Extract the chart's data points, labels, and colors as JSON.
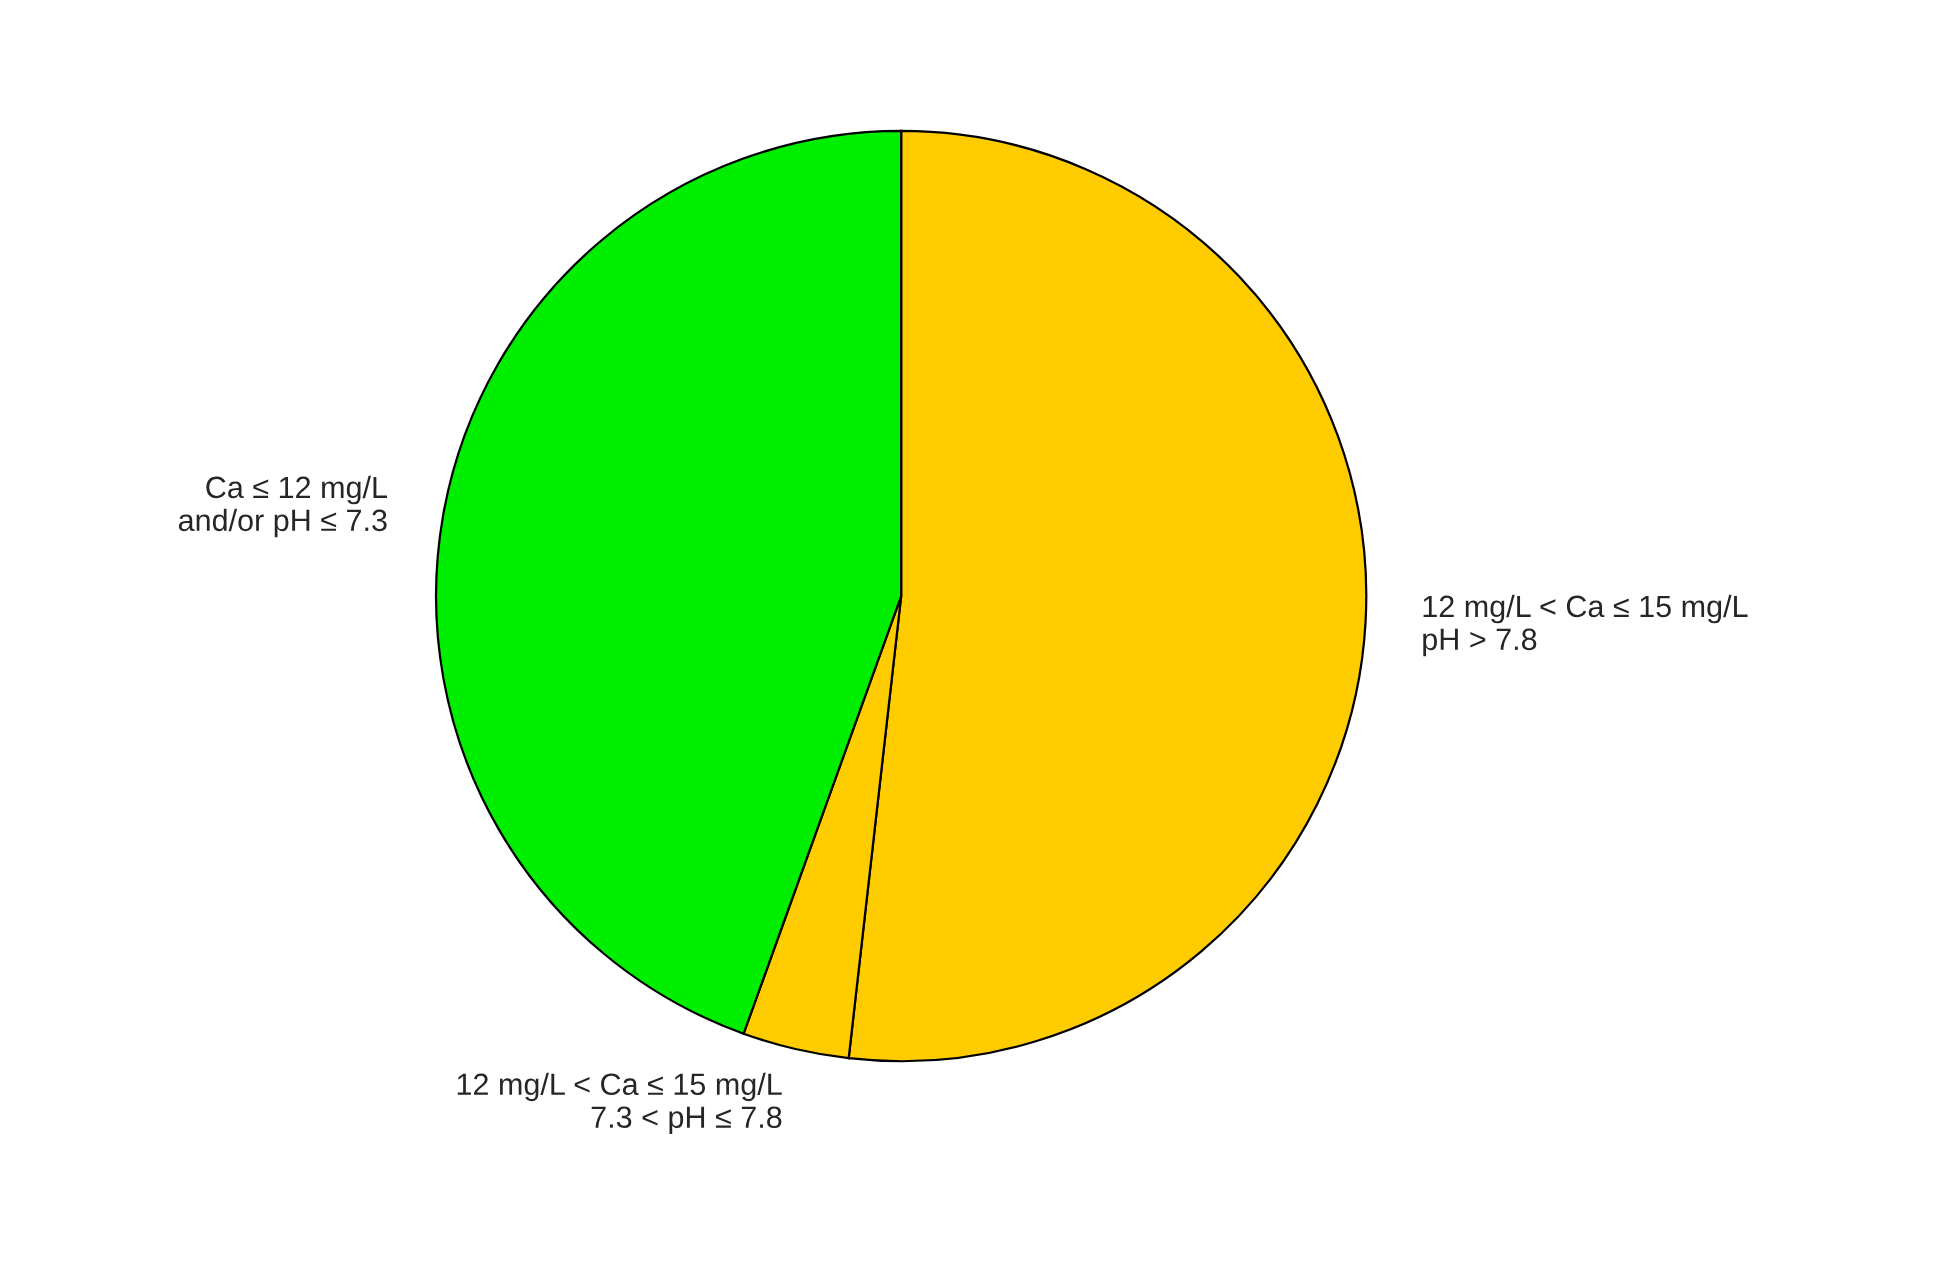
{
  "chart_data": {
    "type": "pie",
    "categories": [
      "12 mg/L < Ca ≤ 15 mg/L\npH > 7.8",
      "12 mg/L < Ca ≤ 15 mg/L\n7.3 < pH ≤ 7.8",
      "Ca ≤ 12 mg/L\nand/or pH ≤ 7.3"
    ],
    "values": [
      51.8,
      3.7,
      44.5
    ],
    "colors": [
      "#ffcc00",
      "#ffcc00",
      "#00ee00"
    ]
  }
}
